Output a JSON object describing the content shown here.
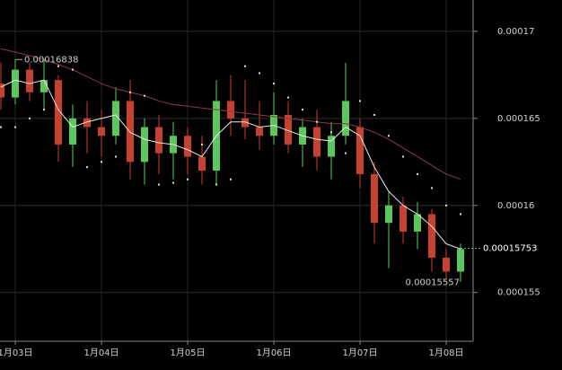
{
  "chart_data": {
    "type": "candlestick",
    "categories": [
      null,
      "1月03日",
      null,
      null,
      null,
      null,
      null,
      "1月04日",
      null,
      null,
      null,
      null,
      null,
      "1月05日",
      null,
      null,
      null,
      null,
      null,
      "1月06日",
      null,
      null,
      null,
      null,
      null,
      "1月07日",
      null,
      null,
      null,
      null,
      null,
      "1月08日",
      null
    ],
    "open": [
      0.000167,
      0.0001662,
      0.0001678,
      0.0001665,
      0.0001672,
      0.0001635,
      0.000165,
      0.0001645,
      0.000164,
      0.000166,
      0.0001625,
      0.0001645,
      0.000163,
      0.000164,
      0.0001628,
      0.000162,
      0.000166,
      0.000165,
      0.0001645,
      0.000164,
      0.0001652,
      0.0001635,
      0.0001645,
      0.0001628,
      0.000164,
      0.0001645,
      0.0001618,
      0.000159,
      0.00016,
      0.0001585,
      0.0001595,
      0.000157,
      0.0001562
    ],
    "high": [
      0.0001682,
      0.0001684,
      0.0001682,
      0.0001684,
      0.0001675,
      0.0001658,
      0.000166,
      0.0001655,
      0.0001668,
      0.0001672,
      0.000165,
      0.0001652,
      0.0001648,
      0.0001645,
      0.000164,
      0.0001672,
      0.0001675,
      0.0001672,
      0.000166,
      0.0001665,
      0.000166,
      0.000165,
      0.0001655,
      0.0001648,
      0.0001682,
      0.000165,
      0.0001625,
      0.0001608,
      0.0001605,
      0.0001602,
      0.0001598,
      0.0001575,
      0.0001578
    ],
    "low": [
      0.0001655,
      0.0001658,
      0.000166,
      0.0001655,
      0.0001625,
      0.0001622,
      0.000163,
      0.0001628,
      0.0001635,
      0.0001615,
      0.0001612,
      0.0001618,
      0.0001615,
      0.0001618,
      0.0001612,
      0.0001612,
      0.000164,
      0.0001638,
      0.0001632,
      0.0001635,
      0.000163,
      0.0001622,
      0.000162,
      0.0001615,
      0.0001635,
      0.000161,
      0.0001578,
      0.0001564,
      0.0001578,
      0.0001575,
      0.0001562,
      0.0001558,
      0.0001556
    ],
    "close": [
      0.0001662,
      0.0001678,
      0.0001665,
      0.0001672,
      0.0001635,
      0.000165,
      0.0001645,
      0.000164,
      0.000166,
      0.0001625,
      0.0001645,
      0.000163,
      0.000164,
      0.0001628,
      0.000162,
      0.000166,
      0.000165,
      0.0001645,
      0.000164,
      0.0001652,
      0.0001635,
      0.0001645,
      0.0001628,
      0.000164,
      0.000166,
      0.0001618,
      0.000159,
      0.00016,
      0.0001585,
      0.0001595,
      0.000157,
      0.0001562,
      0.0001575
    ],
    "up_color": "#5cc85c",
    "down_color": "#c8402e",
    "ma_long": {
      "color": "#8a3a4a",
      "values": [
        0.000169,
        0.0001688,
        0.0001686,
        0.0001684,
        0.0001681,
        0.0001678,
        0.0001674,
        0.000167,
        0.0001667,
        0.0001665,
        0.0001663,
        0.000166,
        0.0001658,
        0.0001657,
        0.0001656,
        0.0001655,
        0.0001654,
        0.0001653,
        0.0001652,
        0.0001651,
        0.000165,
        0.0001649,
        0.0001648,
        0.0001647,
        0.0001647,
        0.0001645,
        0.0001642,
        0.0001638,
        0.0001633,
        0.0001628,
        0.0001623,
        0.0001618,
        0.0001615
      ]
    },
    "ma_short": {
      "color": "#e8e8e8",
      "values": [
        0.0001668,
        0.0001672,
        0.000167,
        0.0001672,
        0.0001655,
        0.0001645,
        0.0001648,
        0.000165,
        0.0001652,
        0.0001642,
        0.0001638,
        0.0001636,
        0.0001635,
        0.0001632,
        0.0001628,
        0.000164,
        0.0001648,
        0.0001648,
        0.0001645,
        0.0001646,
        0.0001643,
        0.000164,
        0.0001638,
        0.0001637,
        0.0001645,
        0.000164,
        0.0001622,
        0.0001608,
        0.00016,
        0.0001595,
        0.0001588,
        0.0001578,
        0.0001575
      ]
    },
    "sar": {
      "color": "#dddddd",
      "values": [
        0.0001645,
        0.0001645,
        0.000165,
        0.0001655,
        0.000168,
        0.0001678,
        0.0001622,
        0.0001625,
        0.0001628,
        0.0001665,
        0.0001663,
        0.0001612,
        0.0001613,
        0.0001615,
        0.0001635,
        0.0001612,
        0.0001615,
        0.000168,
        0.0001676,
        0.000167,
        0.0001662,
        0.0001655,
        0.0001648,
        0.0001642,
        0.000163,
        0.000166,
        0.0001652,
        0.000164,
        0.0001628,
        0.0001618,
        0.000161,
        0.00016,
        0.0001595
      ]
    },
    "ylim": [
      0.0001522,
      0.0001718
    ],
    "yticks": [
      0.00017,
      0.000165,
      0.00016,
      0.000155
    ],
    "grid": true,
    "high_label": 0.00016838,
    "low_label": 0.00015557,
    "last_price": 0.00015753
  }
}
